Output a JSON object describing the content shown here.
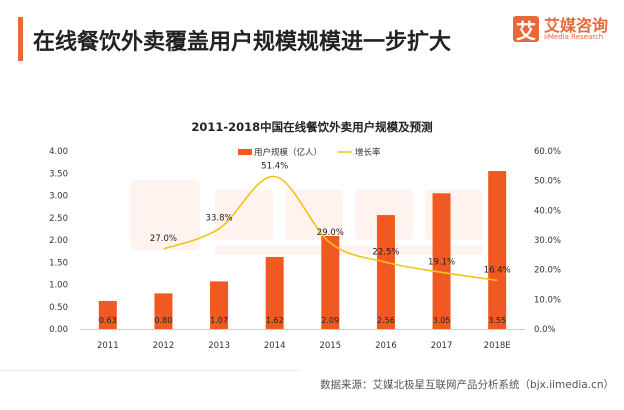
{
  "header": {
    "title": "在线餐饮外卖覆盖用户规模规模进一步扩大",
    "logo_cn": "艾媒咨询",
    "logo_mark": "艾",
    "logo_en": "iiMedia Research"
  },
  "footer": {
    "source": "数据来源：艾媒北极星互联网产品分析系统（bjx.iimedia.cn）"
  },
  "colors": {
    "bar": "#f05a22",
    "line": "#f2c318",
    "accent": "#e8683a"
  },
  "chart_data": {
    "type": "bar",
    "title": "2011-2018中国在线餐饮外卖用户规模及预测",
    "categories": [
      "2011",
      "2012",
      "2013",
      "2014",
      "2015",
      "2016",
      "2017",
      "2018E"
    ],
    "series": [
      {
        "name": "用户规模（亿人）",
        "type": "bar",
        "axis": "left",
        "values": [
          0.63,
          0.8,
          1.07,
          1.62,
          2.09,
          2.56,
          3.05,
          3.55
        ],
        "labels": [
          "0.63",
          "0.80",
          "1.07",
          "1.62",
          "2.09",
          "2.56",
          "3.05",
          "3.55"
        ]
      },
      {
        "name": "增长率",
        "type": "line",
        "axis": "right",
        "values": [
          null,
          27.0,
          33.8,
          51.4,
          29.0,
          22.5,
          19.1,
          16.4
        ],
        "labels": [
          "",
          "27.0%",
          "33.8%",
          "51.4%",
          "29.0%",
          "22.5%",
          "19.1%",
          "16.4%"
        ]
      }
    ],
    "left_axis": {
      "min": 0,
      "max": 4,
      "ticks": [
        "0.00",
        "0.50",
        "1.00",
        "1.50",
        "2.00",
        "2.50",
        "3.00",
        "3.50",
        "4.00"
      ]
    },
    "right_axis": {
      "min": 0,
      "max": 60,
      "ticks": [
        "0.0%",
        "10.0%",
        "20.0%",
        "30.0%",
        "40.0%",
        "50.0%",
        "60.0%"
      ]
    },
    "legend": "top-center",
    "grid": false
  }
}
